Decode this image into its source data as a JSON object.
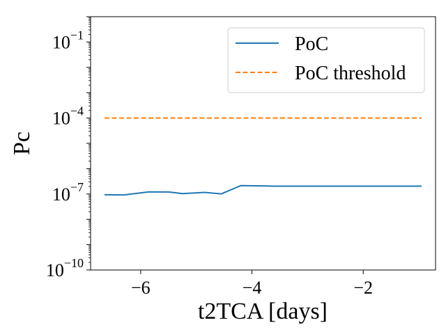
{
  "chart_data": {
    "type": "line",
    "xlabel": "t2TCA [days]",
    "ylabel": "Pc",
    "xlim": [
      -6.9,
      -0.7
    ],
    "ylim_exponent": [
      -10,
      0
    ],
    "y_scale": "log",
    "x_ticks": [
      {
        "value": -6,
        "label": "−6"
      },
      {
        "value": -4,
        "label": "−4"
      },
      {
        "value": -2,
        "label": "−2"
      }
    ],
    "y_ticks": [
      {
        "exponent": -10,
        "base": "10",
        "exp_label": "−10"
      },
      {
        "exponent": -7,
        "base": "10",
        "exp_label": "−7"
      },
      {
        "exponent": -4,
        "base": "10",
        "exp_label": "−4"
      },
      {
        "exponent": -1,
        "base": "10",
        "exp_label": "−1"
      }
    ],
    "legend_position": "top-right",
    "grid": false,
    "series": [
      {
        "name": "PoC",
        "color": "#1f77b4",
        "dash": "solid",
        "x": [
          -6.65,
          -6.3,
          -5.85,
          -5.5,
          -5.25,
          -4.85,
          -4.55,
          -4.2,
          -3.6,
          -3.0,
          -2.4,
          -1.8,
          -1.2,
          -0.95
        ],
        "y": [
          9.3e-08,
          9.2e-08,
          1.22e-07,
          1.2e-07,
          1.04e-07,
          1.16e-07,
          1.01e-07,
          2.15e-07,
          2.05e-07,
          2.05e-07,
          2.05e-07,
          2.04e-07,
          2.04e-07,
          2.04e-07
        ]
      },
      {
        "name": "PoC threshold",
        "color": "#ff7f0e",
        "dash": "dashed",
        "x": [
          -6.65,
          -0.95
        ],
        "y": [
          0.0001,
          0.0001
        ]
      }
    ]
  }
}
